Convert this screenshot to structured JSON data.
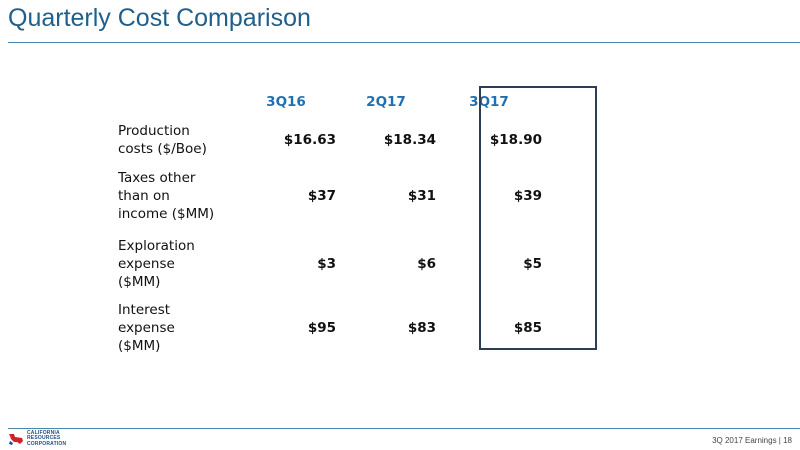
{
  "slide": {
    "title": "Quarterly Cost Comparison",
    "footer": "3Q 2017 Earnings | 18",
    "logo": {
      "line1": "CALIFORNIA",
      "line2": "RESOURCES",
      "line3": "CORPORATION"
    }
  },
  "table": {
    "headers": [
      "3Q16",
      "2Q17",
      "3Q17"
    ],
    "rows": [
      {
        "label_lines": [
          "Production",
          "costs ($/Boe)"
        ],
        "values": [
          "$16.63",
          "$18.34",
          "$18.90"
        ]
      },
      {
        "label_lines": [
          "Taxes other",
          "than on",
          "income ($MM)"
        ],
        "values": [
          "$37",
          "$31",
          "$39"
        ]
      },
      {
        "label_lines": [
          "Exploration",
          "expense",
          "($MM)"
        ],
        "values": [
          "$3",
          "$6",
          "$5"
        ]
      },
      {
        "label_lines": [
          "Interest",
          "expense",
          "($MM)"
        ],
        "values": [
          "$95",
          "$83",
          "$85"
        ]
      }
    ],
    "highlighted_column": "3Q17"
  },
  "colors": {
    "title": "#1f5f8b",
    "header": "#1f6fb2",
    "rule": "#4a88b3",
    "highlight_box": "#2c3e55"
  }
}
